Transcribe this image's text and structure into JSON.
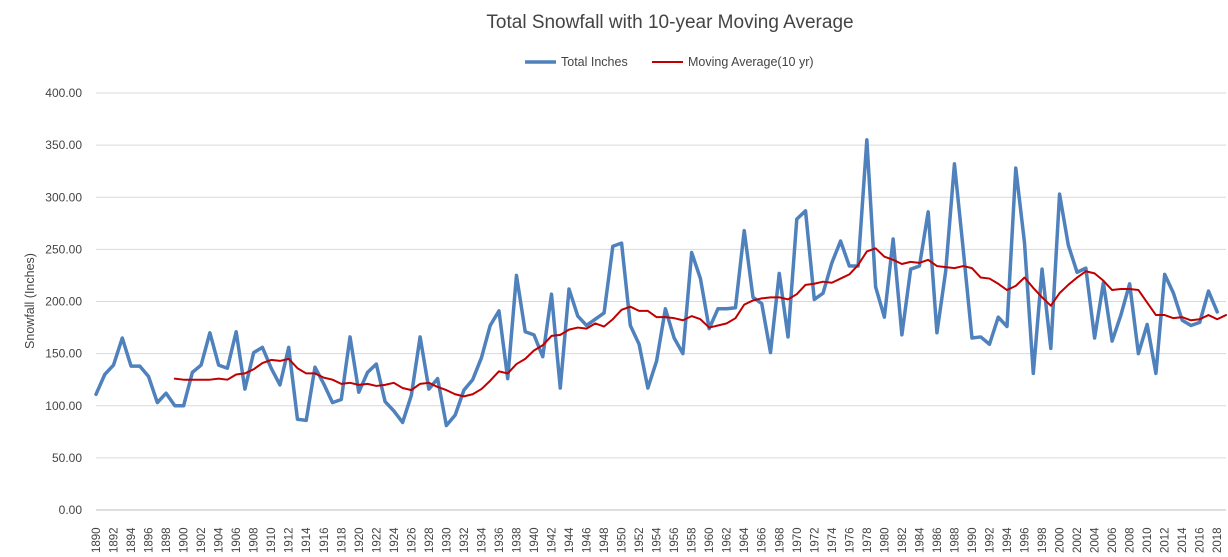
{
  "chart_data": {
    "type": "line",
    "title": "Total Snowfall with 10-year Moving Average",
    "xlabel": "",
    "ylabel": "Snowfall (Inches)",
    "ylim": [
      0,
      400
    ],
    "ytick_labels": [
      "0.00",
      "50.00",
      "100.00",
      "150.00",
      "200.00",
      "250.00",
      "300.00",
      "350.00",
      "400.00"
    ],
    "xtick_labels": [
      "1890",
      "1892",
      "1894",
      "1896",
      "1898",
      "1900",
      "1902",
      "1904",
      "1906",
      "1908",
      "1910",
      "1912",
      "1914",
      "1916",
      "1918",
      "1920",
      "1922",
      "1924",
      "1926",
      "1928",
      "1930",
      "1932",
      "1934",
      "1936",
      "1938",
      "1940",
      "1942",
      "1944",
      "1946",
      "1948",
      "1950",
      "1952",
      "1954",
      "1956",
      "1958",
      "1960",
      "1962",
      "1964",
      "1966",
      "1968",
      "1970",
      "1972",
      "1974",
      "1976",
      "1978",
      "1980",
      "1982",
      "1984",
      "1986",
      "1988",
      "1990",
      "1992",
      "1994",
      "1996",
      "1998",
      "2000",
      "2002",
      "2004",
      "2006",
      "2008",
      "2010",
      "2012",
      "2014",
      "2016",
      "2018"
    ],
    "grid": true,
    "legend_position": "top",
    "x": [
      1890,
      1891,
      1892,
      1893,
      1894,
      1895,
      1896,
      1897,
      1898,
      1899,
      1900,
      1901,
      1902,
      1903,
      1904,
      1905,
      1906,
      1907,
      1908,
      1909,
      1910,
      1911,
      1912,
      1913,
      1914,
      1915,
      1916,
      1917,
      1918,
      1919,
      1920,
      1921,
      1922,
      1923,
      1924,
      1925,
      1926,
      1927,
      1928,
      1929,
      1930,
      1931,
      1932,
      1933,
      1934,
      1935,
      1936,
      1937,
      1938,
      1939,
      1940,
      1941,
      1942,
      1943,
      1944,
      1945,
      1946,
      1947,
      1948,
      1949,
      1950,
      1951,
      1952,
      1953,
      1954,
      1955,
      1956,
      1957,
      1958,
      1959,
      1960,
      1961,
      1962,
      1963,
      1964,
      1965,
      1966,
      1967,
      1968,
      1969,
      1970,
      1971,
      1972,
      1973,
      1974,
      1975,
      1976,
      1977,
      1978,
      1979,
      1980,
      1981,
      1982,
      1983,
      1984,
      1985,
      1986,
      1987,
      1988,
      1989,
      1990,
      1991,
      1992,
      1993,
      1994,
      1995,
      1996,
      1997,
      1998,
      1999,
      2000,
      2001,
      2002,
      2003,
      2004,
      2005,
      2006,
      2007,
      2008,
      2009,
      2010,
      2011,
      2012,
      2013,
      2014,
      2015,
      2016,
      2017,
      2018,
      2019
    ],
    "series": [
      {
        "name": "Total Inches",
        "color": "#4f81bd",
        "values": [
          111,
          130,
          139,
          165,
          138,
          138,
          128,
          103,
          112,
          100,
          100,
          132,
          139,
          170,
          139,
          136,
          171,
          116,
          151,
          156,
          136,
          120,
          156,
          87,
          86,
          137,
          121,
          103,
          106,
          166,
          113,
          132,
          140,
          104,
          95,
          84,
          110,
          166,
          116,
          126,
          81,
          91,
          115,
          125,
          146,
          177,
          191,
          126,
          225,
          171,
          168,
          147,
          207,
          117,
          212,
          186,
          177,
          183,
          189,
          253,
          256,
          177,
          159,
          117,
          143,
          193,
          165,
          150,
          247,
          222,
          174,
          193,
          193,
          194,
          268,
          204,
          198,
          151,
          227,
          166,
          279,
          287,
          202,
          208,
          237,
          258,
          234,
          234,
          355,
          214,
          185,
          260,
          168,
          231,
          234,
          286,
          170,
          229,
          332,
          250,
          165,
          166,
          159,
          185,
          176,
          328,
          256,
          131,
          231,
          155,
          303,
          254,
          228,
          232,
          165,
          218,
          162,
          187,
          217,
          150,
          178,
          131,
          226,
          208,
          182,
          177,
          180,
          210,
          190,
          null
        ],
        "show_markers": false
      },
      {
        "name": "Moving Average(10 yr)",
        "color": "#c00000",
        "values": [
          null,
          null,
          null,
          null,
          null,
          null,
          null,
          null,
          null,
          126,
          125,
          125,
          125,
          125,
          126,
          125,
          130,
          131,
          135,
          141,
          144,
          143,
          145,
          136,
          131,
          131,
          127,
          125,
          121,
          122,
          120,
          121,
          119,
          120,
          122,
          117,
          115,
          121,
          122,
          118,
          115,
          111,
          109,
          111,
          116,
          124,
          133,
          131,
          140,
          145,
          153,
          158,
          167,
          168,
          173,
          175,
          174,
          179,
          176,
          183,
          192,
          195,
          191,
          191,
          185,
          185,
          184,
          182,
          186,
          183,
          175,
          177,
          179,
          184,
          197,
          201,
          203,
          204,
          204,
          202,
          207,
          216,
          217,
          219,
          218,
          222,
          226,
          235,
          248,
          251,
          243,
          240,
          236,
          238,
          237,
          240,
          234,
          233,
          232,
          234,
          232,
          223,
          222,
          217,
          211,
          215,
          223,
          213,
          204,
          196,
          208,
          216,
          223,
          229,
          227,
          220,
          211,
          212,
          212,
          211,
          199,
          187,
          187,
          184,
          185,
          182,
          183,
          187,
          183,
          187
        ]
      }
    ]
  }
}
